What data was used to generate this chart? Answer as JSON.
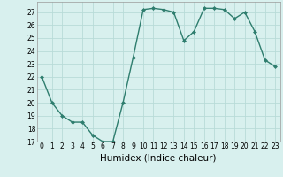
{
  "x": [
    0,
    1,
    2,
    3,
    4,
    5,
    6,
    7,
    8,
    9,
    10,
    11,
    12,
    13,
    14,
    15,
    16,
    17,
    18,
    19,
    20,
    21,
    22,
    23
  ],
  "y": [
    22,
    20,
    19,
    18.5,
    18.5,
    17.5,
    17,
    17,
    20,
    23.5,
    27.2,
    27.3,
    27.2,
    27,
    24.8,
    25.5,
    27.3,
    27.3,
    27.2,
    26.5,
    27,
    25.5,
    23.3,
    22.8
  ],
  "line_color": "#2e7d6e",
  "marker": "D",
  "marker_size": 2.0,
  "bg_color": "#d8f0ee",
  "grid_color": "#b8dbd8",
  "xlabel": "Humidex (Indice chaleur)",
  "xlim": [
    -0.5,
    23.5
  ],
  "ylim": [
    17,
    27.8
  ],
  "yticks": [
    17,
    18,
    19,
    20,
    21,
    22,
    23,
    24,
    25,
    26,
    27
  ],
  "xticks": [
    0,
    1,
    2,
    3,
    4,
    5,
    6,
    7,
    8,
    9,
    10,
    11,
    12,
    13,
    14,
    15,
    16,
    17,
    18,
    19,
    20,
    21,
    22,
    23
  ],
  "tick_fontsize": 5.5,
  "xlabel_fontsize": 7.5,
  "linewidth": 1.0
}
